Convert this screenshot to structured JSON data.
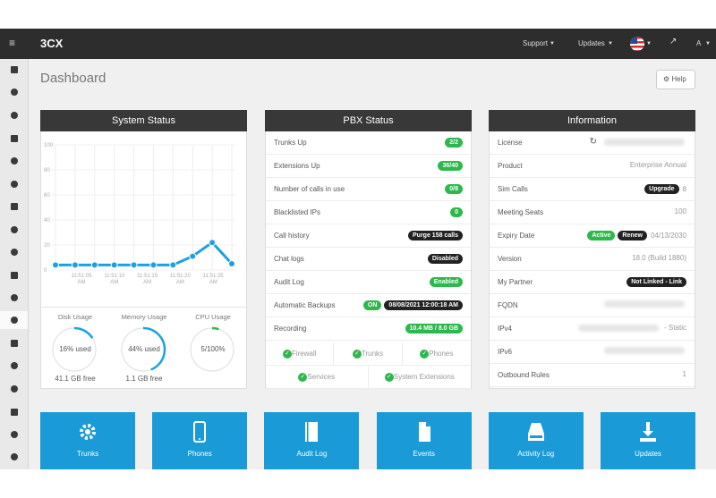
{
  "header": {
    "logo": "3CX",
    "menu": [
      "Support",
      "Updates"
    ],
    "user": "A"
  },
  "page_title": "Dashboard",
  "help": "Help",
  "system_status": {
    "title": "System Status",
    "chart": {
      "type": "line",
      "ylim": [
        0,
        100
      ],
      "yticks": [
        0,
        20,
        40,
        60,
        80,
        100
      ],
      "color": "#1ba1e2",
      "values": [
        4,
        4,
        4,
        4,
        4,
        4,
        4,
        11,
        22,
        5
      ],
      "time_labels": [
        "11:51:05 AM",
        "11:51:10 AM",
        "11:51:15 AM",
        "11:51:20 AM",
        "11:51:25 AM"
      ]
    },
    "gauges": [
      {
        "label": "Disk Usage",
        "value": 16,
        "text": "16% used",
        "note": "41.1 GB free"
      },
      {
        "label": "Memory Usage",
        "value": 44,
        "text": "44% used",
        "note": "1.1 GB free"
      },
      {
        "label": "CPU Usage",
        "value": 5,
        "text": "5/100%",
        "color": "#2db84b"
      }
    ]
  },
  "pbx_status": {
    "title": "PBX Status",
    "rows": [
      {
        "label": "Trunks Up",
        "badges": [
          {
            "text": "2/2",
            "color": "#2db84b"
          }
        ]
      },
      {
        "label": "Extensions Up",
        "badges": [
          {
            "text": "36/40",
            "color": "#2db84b"
          }
        ]
      },
      {
        "label": "Number of calls in use",
        "badges": [
          {
            "text": "0/8",
            "color": "#2db84b"
          }
        ]
      },
      {
        "label": "Blacklisted IPs",
        "badges": [
          {
            "text": "0",
            "color": "#2db84b"
          }
        ]
      },
      {
        "label": "Call history",
        "badges": [
          {
            "text": "Purge 158 calls",
            "color": "#222222"
          }
        ]
      },
      {
        "label": "Chat logs",
        "badges": [
          {
            "text": "Disabled",
            "color": "#222222"
          }
        ]
      },
      {
        "label": "Audit Log",
        "badges": [
          {
            "text": "Enabled",
            "color": "#2db84b"
          }
        ]
      },
      {
        "label": "Automatic Backups",
        "badges": [
          {
            "text": "ON",
            "color": "#2db84b"
          },
          {
            "text": "08/08/2021 12:00:18 AM",
            "color": "#222222"
          }
        ]
      },
      {
        "label": "Recording",
        "badges": [
          {
            "text": "10.4 MB / 8.0 GB",
            "color": "#2db84b"
          }
        ]
      }
    ],
    "checks": [
      "Firewall",
      "Trunks",
      "Phones",
      "Services",
      "System Extensions"
    ]
  },
  "information": {
    "title": "Information",
    "rows": [
      {
        "label": "License",
        "blur": true,
        "refresh": true
      },
      {
        "label": "Product",
        "value": "Enterprise Annual"
      },
      {
        "label": "Sim Calls",
        "badges": [
          {
            "text": "Upgrade",
            "color": "#222222"
          }
        ],
        "value": "8"
      },
      {
        "label": "Meeting Seats",
        "value": "100"
      },
      {
        "label": "Expiry Date",
        "badges": [
          {
            "text": "Active",
            "color": "#2db84b"
          },
          {
            "text": "Renew",
            "color": "#222222"
          }
        ],
        "value": "04/13/2030"
      },
      {
        "label": "Version",
        "value": "18.0 (Build 1880)"
      },
      {
        "label": "My Partner",
        "badges": [
          {
            "text": "Not Linked - Link",
            "color": "#222222"
          }
        ]
      },
      {
        "label": "FQDN",
        "blur": true
      },
      {
        "label": "IPv4",
        "blur": true,
        "value": "- Static"
      },
      {
        "label": "IPv6",
        "blur": true
      },
      {
        "label": "Outbound Rules",
        "value": "1"
      }
    ]
  },
  "tiles": [
    "Trunks",
    "Phones",
    "Audit Log",
    "Events",
    "Activity Log",
    "Updates"
  ]
}
